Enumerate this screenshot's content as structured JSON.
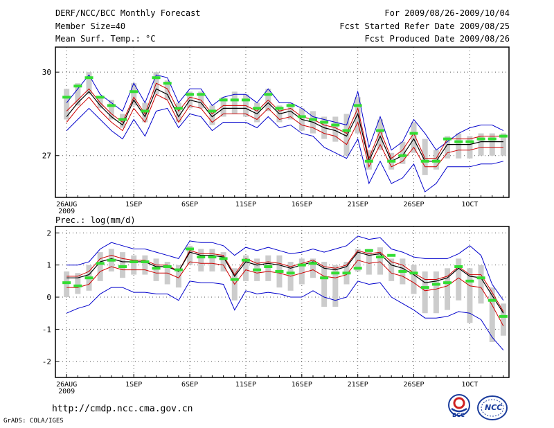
{
  "header": {
    "left_lines": [
      "DERF/NCC/BCC Monthly Forecast",
      "Member Size=40",
      "Mean Surf. Temp.: °C"
    ],
    "right_lines": [
      "For 2009/08/26-2009/10/04",
      "Fcst Started Refer Date 2009/08/25",
      "Fcst Produced Date 2009/08/26"
    ]
  },
  "panel2_label": "Prec.: log(mm/d)",
  "footer": {
    "url": "http://cmdp.ncc.cma.gov.cn",
    "credit": "GrADS: COLA/IGES",
    "logo1_text": "BCC",
    "logo2_text": "NCC"
  },
  "colors": {
    "envelope": "#0000cc",
    "spread": "#cc0000",
    "mean": "#000000",
    "median": "#33dd33",
    "box": "#cccccc"
  },
  "chart_data": [
    {
      "type": "line",
      "title": "Mean Surf. Temp.: °C",
      "x_tick_labels": [
        "26AUG",
        "1SEP",
        "6SEP",
        "11SEP",
        "16SEP",
        "21SEP",
        "26SEP",
        "1OCT"
      ],
      "x_tick_days": [
        0,
        6,
        11,
        16,
        21,
        26,
        31,
        36
      ],
      "x_sublabel": "2009",
      "y_ticks": [
        27,
        30
      ],
      "ylim": [
        25.5,
        30.9
      ],
      "xlim": [
        -1,
        39.5
      ],
      "series": [
        {
          "name": "max",
          "values": [
            28.9,
            29.4,
            29.9,
            29.2,
            28.9,
            28.6,
            29.6,
            28.9,
            29.9,
            29.8,
            28.9,
            29.4,
            29.4,
            28.8,
            29.1,
            29.2,
            29.2,
            28.9,
            29.4,
            28.9,
            28.9,
            28.7,
            28.4,
            28.3,
            28.2,
            28.1,
            29.3,
            27.3,
            28.4,
            27.2,
            27.5,
            28.3,
            27.8,
            27.2,
            27.5,
            27.8,
            28.0,
            28.1,
            28.1,
            27.9
          ]
        },
        {
          "name": "spread_upper",
          "values": [
            28.6,
            29.0,
            29.4,
            28.9,
            28.5,
            28.2,
            29.1,
            28.5,
            29.6,
            29.4,
            28.6,
            29.1,
            29.0,
            28.5,
            28.8,
            28.8,
            28.8,
            28.6,
            29.0,
            28.6,
            28.7,
            28.4,
            28.3,
            28.1,
            28.0,
            27.8,
            28.7,
            26.9,
            27.9,
            26.9,
            27.2,
            27.8,
            26.9,
            26.9,
            27.6,
            27.6,
            27.6,
            27.7,
            27.7,
            27.7
          ]
        },
        {
          "name": "mean",
          "values": [
            28.4,
            28.9,
            29.3,
            28.8,
            28.4,
            28.1,
            29.0,
            28.4,
            29.4,
            29.2,
            28.4,
            29.0,
            28.9,
            28.4,
            28.7,
            28.7,
            28.7,
            28.5,
            28.9,
            28.5,
            28.6,
            28.3,
            28.2,
            28.0,
            27.9,
            27.7,
            28.5,
            26.8,
            27.7,
            26.8,
            27.0,
            27.6,
            26.8,
            26.8,
            27.4,
            27.4,
            27.4,
            27.5,
            27.5,
            27.5
          ]
        },
        {
          "name": "spread_lower",
          "values": [
            28.2,
            28.7,
            29.1,
            28.6,
            28.2,
            27.9,
            28.7,
            28.2,
            29.2,
            29.0,
            28.2,
            28.8,
            28.7,
            28.2,
            28.5,
            28.5,
            28.5,
            28.3,
            28.7,
            28.3,
            28.4,
            28.1,
            28.0,
            27.8,
            27.7,
            27.4,
            28.2,
            26.6,
            27.4,
            26.6,
            26.8,
            27.3,
            26.6,
            26.6,
            27.1,
            27.2,
            27.2,
            27.3,
            27.3,
            27.3
          ]
        },
        {
          "name": "min",
          "values": [
            27.9,
            28.3,
            28.7,
            28.3,
            27.9,
            27.6,
            28.3,
            27.7,
            28.6,
            28.7,
            28.0,
            28.5,
            28.4,
            27.9,
            28.2,
            28.2,
            28.2,
            28.0,
            28.4,
            28.0,
            28.1,
            27.8,
            27.7,
            27.3,
            27.1,
            26.9,
            27.6,
            26.0,
            26.8,
            26.0,
            26.2,
            26.7,
            25.7,
            26.0,
            26.6,
            26.6,
            26.6,
            26.7,
            26.7,
            26.8
          ]
        },
        {
          "name": "median",
          "values": [
            29.1,
            29.5,
            29.8,
            29.1,
            28.8,
            28.3,
            29.3,
            28.6,
            29.8,
            29.6,
            28.7,
            29.2,
            29.2,
            28.6,
            29.0,
            29.0,
            29.0,
            28.7,
            29.2,
            28.7,
            28.8,
            28.4,
            28.3,
            28.2,
            28.1,
            27.9,
            28.8,
            26.8,
            27.9,
            26.8,
            27.0,
            27.8,
            26.8,
            26.8,
            27.6,
            27.5,
            27.5,
            27.6,
            27.6,
            27.7
          ]
        },
        {
          "name": "box_low",
          "values": [
            28.3,
            28.8,
            29.2,
            28.7,
            28.3,
            28.0,
            28.8,
            28.2,
            29.2,
            29.0,
            28.2,
            28.7,
            28.7,
            28.1,
            28.4,
            28.5,
            28.4,
            28.2,
            28.6,
            28.2,
            28.3,
            27.9,
            27.8,
            27.6,
            27.5,
            27.0,
            27.8,
            26.5,
            27.2,
            26.5,
            26.7,
            27.1,
            26.3,
            26.5,
            26.9,
            26.9,
            26.9,
            27.0,
            27.0,
            27.0
          ]
        },
        {
          "name": "box_high",
          "values": [
            29.4,
            29.6,
            30.0,
            29.1,
            29.0,
            28.5,
            29.6,
            28.9,
            30.0,
            29.7,
            28.9,
            29.3,
            29.3,
            28.8,
            29.1,
            29.3,
            29.2,
            28.9,
            29.4,
            28.8,
            28.9,
            28.7,
            28.6,
            28.4,
            28.4,
            28.5,
            29.1,
            27.2,
            28.3,
            27.1,
            27.5,
            28.2,
            27.6,
            27.2,
            27.7,
            27.8,
            27.7,
            27.8,
            27.8,
            27.8
          ]
        }
      ]
    },
    {
      "type": "line",
      "title": "Prec.: log(mm/d)",
      "x_tick_labels": [
        "26AUG",
        "1SEP",
        "6SEP",
        "11SEP",
        "16SEP",
        "21SEP",
        "26SEP",
        "1OCT"
      ],
      "x_tick_days": [
        0,
        6,
        11,
        16,
        21,
        26,
        31,
        36
      ],
      "x_sublabel": "2009",
      "y_ticks": [
        -2,
        -1,
        0,
        1,
        2
      ],
      "ylim": [
        -2.5,
        2.2
      ],
      "xlim": [
        -1,
        39.5
      ],
      "series": [
        {
          "name": "max",
          "values": [
            1.0,
            1.0,
            1.1,
            1.5,
            1.7,
            1.6,
            1.5,
            1.5,
            1.4,
            1.3,
            1.2,
            1.75,
            1.7,
            1.7,
            1.6,
            1.3,
            1.55,
            1.45,
            1.55,
            1.45,
            1.35,
            1.4,
            1.5,
            1.4,
            1.5,
            1.6,
            1.9,
            1.8,
            1.85,
            1.5,
            1.4,
            1.25,
            1.2,
            1.2,
            1.2,
            1.35,
            1.6,
            1.3,
            0.4,
            -0.1
          ]
        },
        {
          "name": "spread_upper",
          "values": [
            0.65,
            0.65,
            0.8,
            1.2,
            1.3,
            1.2,
            1.15,
            1.15,
            1.0,
            1.0,
            0.8,
            1.45,
            1.35,
            1.35,
            1.3,
            0.7,
            1.2,
            1.05,
            1.1,
            1.05,
            0.95,
            1.05,
            1.15,
            0.95,
            0.9,
            1.0,
            1.45,
            1.35,
            1.4,
            1.1,
            1.0,
            0.75,
            0.55,
            0.55,
            0.65,
            0.95,
            0.7,
            0.7,
            0.15,
            -0.45
          ]
        },
        {
          "name": "mean",
          "values": [
            0.6,
            0.6,
            0.7,
            1.1,
            1.2,
            1.1,
            1.1,
            1.1,
            0.95,
            0.95,
            0.8,
            1.4,
            1.3,
            1.3,
            1.25,
            0.65,
            1.1,
            1.0,
            1.05,
            1.0,
            0.9,
            1.0,
            1.1,
            0.9,
            0.85,
            0.95,
            1.4,
            1.3,
            1.35,
            1.0,
            0.9,
            0.7,
            0.45,
            0.5,
            0.6,
            0.9,
            0.65,
            0.6,
            0.05,
            -0.5
          ]
        },
        {
          "name": "spread_lower",
          "values": [
            0.3,
            0.3,
            0.4,
            0.8,
            0.95,
            0.85,
            0.85,
            0.85,
            0.75,
            0.75,
            0.6,
            1.1,
            1.05,
            1.05,
            1.0,
            0.4,
            0.85,
            0.75,
            0.8,
            0.75,
            0.65,
            0.75,
            0.85,
            0.65,
            0.6,
            0.7,
            1.15,
            1.05,
            1.1,
            0.75,
            0.65,
            0.45,
            0.2,
            0.25,
            0.35,
            0.6,
            0.35,
            0.3,
            -0.25,
            -0.9
          ]
        },
        {
          "name": "min",
          "values": [
            -0.5,
            -0.35,
            -0.25,
            0.1,
            0.3,
            0.3,
            0.15,
            0.15,
            0.1,
            0.1,
            -0.1,
            0.5,
            0.45,
            0.45,
            0.4,
            -0.4,
            0.2,
            0.1,
            0.15,
            0.1,
            0.0,
            0.0,
            0.2,
            0.0,
            -0.1,
            0.0,
            0.5,
            0.4,
            0.45,
            0.0,
            -0.2,
            -0.4,
            -0.65,
            -0.65,
            -0.6,
            -0.45,
            -0.5,
            -0.7,
            -1.25,
            -1.65
          ]
        },
        {
          "name": "median",
          "values": [
            0.45,
            0.35,
            0.6,
            1.05,
            1.15,
            0.95,
            1.1,
            1.1,
            0.9,
            0.95,
            0.85,
            1.5,
            1.25,
            1.25,
            1.2,
            0.55,
            1.15,
            0.85,
            0.95,
            0.8,
            0.75,
            1.0,
            1.05,
            0.6,
            0.75,
            0.75,
            0.9,
            1.45,
            1.25,
            1.3,
            0.8,
            0.75,
            0.3,
            0.4,
            0.45,
            0.95,
            0.5,
            0.6,
            -0.1,
            -0.6
          ]
        },
        {
          "name": "box_low",
          "values": [
            0.0,
            0.1,
            0.2,
            0.5,
            0.8,
            0.6,
            0.7,
            0.7,
            0.5,
            0.4,
            0.3,
            1.0,
            0.8,
            0.8,
            0.8,
            -0.1,
            0.5,
            0.5,
            0.5,
            0.3,
            0.2,
            0.4,
            0.6,
            -0.3,
            -0.3,
            0.4,
            0.8,
            0.7,
            0.7,
            0.5,
            0.4,
            0.1,
            -0.5,
            -0.5,
            -0.4,
            -0.1,
            -0.8,
            -0.2,
            -1.4,
            -1.2
          ]
        },
        {
          "name": "box_high",
          "values": [
            0.8,
            0.75,
            1.0,
            1.4,
            1.5,
            1.4,
            1.3,
            1.3,
            1.2,
            1.1,
            1.0,
            1.6,
            1.5,
            1.5,
            1.4,
            0.9,
            1.3,
            1.2,
            1.3,
            1.3,
            1.1,
            1.2,
            1.2,
            1.1,
            1.0,
            1.1,
            1.5,
            1.5,
            1.55,
            1.2,
            1.2,
            1.0,
            0.8,
            0.8,
            0.9,
            1.2,
            0.9,
            1.0,
            0.3,
            -0.2
          ]
        }
      ]
    }
  ]
}
